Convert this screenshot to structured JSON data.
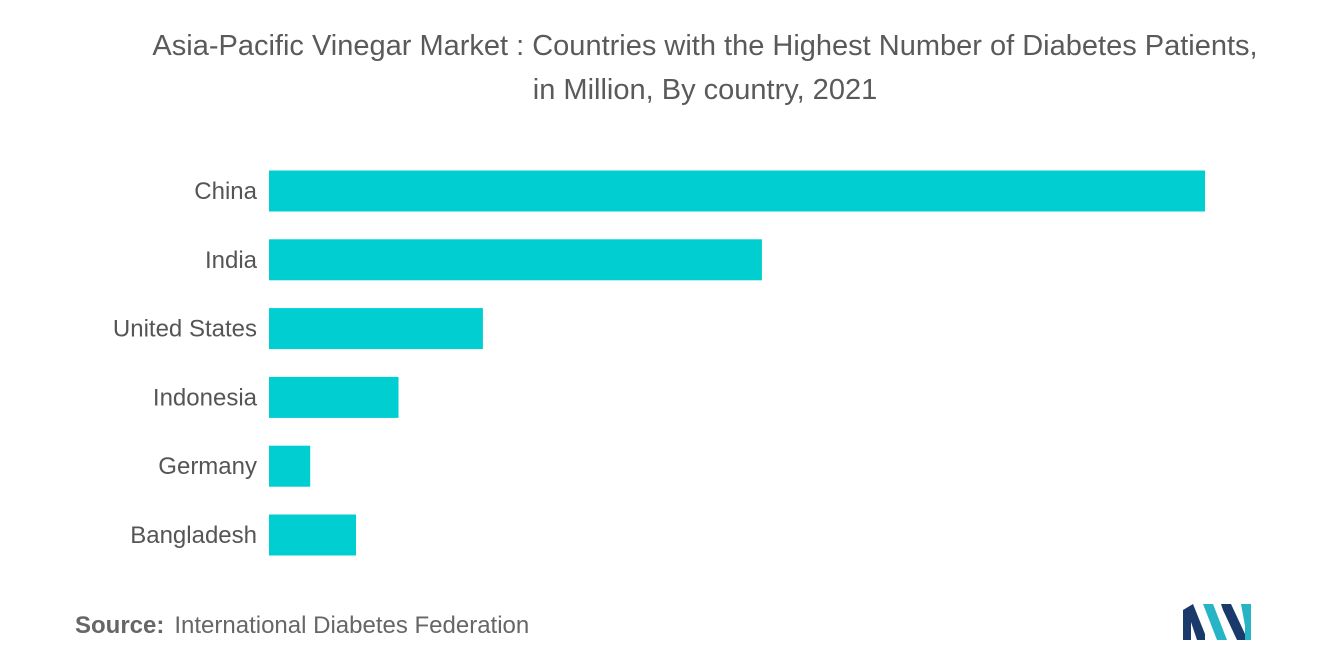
{
  "chart_data": {
    "type": "bar",
    "orientation": "horizontal",
    "title": "Asia-Pacific Vinegar Market : Countries with the Highest Number of Diabetes Patients, in Million, By country, 2021",
    "categories": [
      "China",
      "India",
      "United States",
      "Indonesia",
      "Germany",
      "Bangladesh"
    ],
    "values": [
      140.9,
      74.2,
      32.2,
      19.5,
      6.2,
      13.1
    ],
    "xlabel": "",
    "ylabel": "",
    "xlim": [
      0,
      140.9
    ],
    "grid": false,
    "axis_values_shown": false,
    "colors": {
      "bar": "#00CED1"
    }
  },
  "source": {
    "label": "Source:",
    "text": "International Diabetes Federation"
  },
  "logo": {
    "icon": "mordor-intelligence-logo",
    "colors": [
      "#1a3a6b",
      "#27b5c6"
    ]
  }
}
